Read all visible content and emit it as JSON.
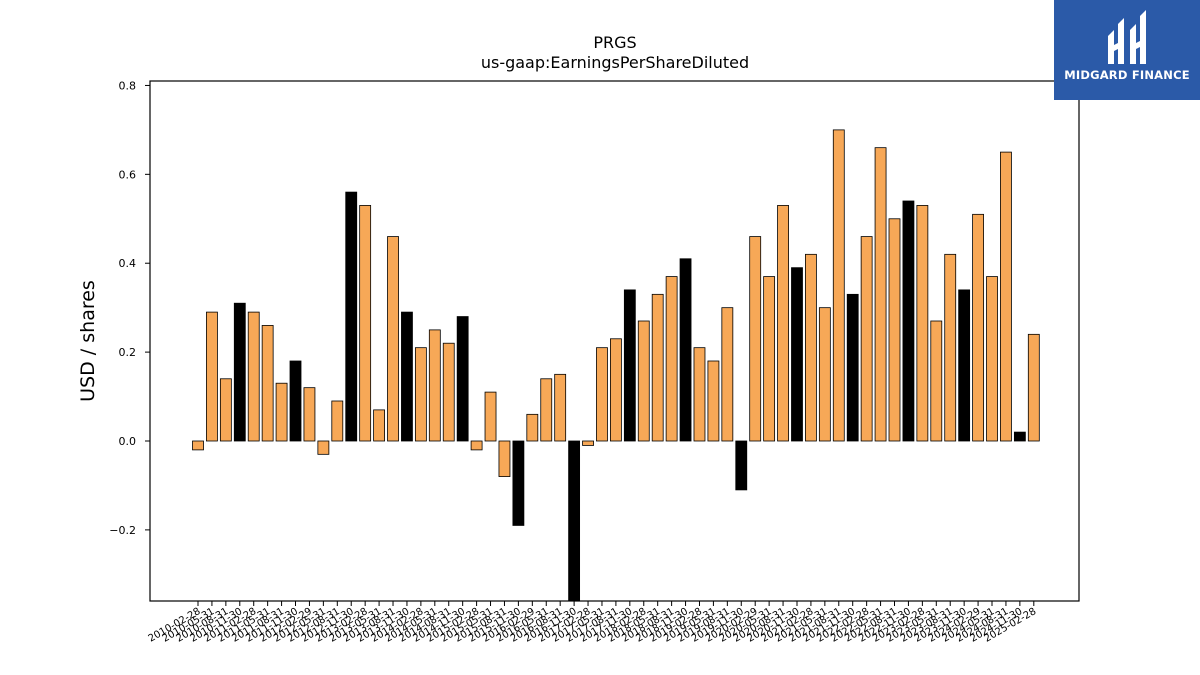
{
  "chart_data": {
    "type": "bar",
    "title": "PRGS",
    "subtitle": "us-gaap:EarningsPerShareDiluted",
    "xlabel": "",
    "ylabel": "USD / shares",
    "ylim": [
      -0.36,
      0.81
    ],
    "yticks": [
      -0.2,
      0.0,
      0.2,
      0.4,
      0.6,
      0.8
    ],
    "ytick_labels": [
      "−0.2",
      "0.0",
      "0.2",
      "0.4",
      "0.6",
      "0.8"
    ],
    "grid": false,
    "colors": {
      "quarter": "#f7a857",
      "annual": "#000000"
    },
    "xtick_labels": [
      "2010-02-28",
      "2010-05-31",
      "2010-08-31",
      "2010-11-30",
      "2011-02-28",
      "2011-05-31",
      "2011-08-31",
      "2011-11-30",
      "2012-02-29",
      "2012-05-31",
      "2012-08-31",
      "2012-11-30",
      "2013-02-28",
      "2013-05-31",
      "2013-08-31",
      "2013-11-30",
      "2014-02-28",
      "2014-05-31",
      "2014-08-31",
      "2014-11-30",
      "2015-02-28",
      "2015-05-31",
      "2015-08-31",
      "2015-11-30",
      "2016-02-29",
      "2016-05-31",
      "2016-08-31",
      "2016-11-30",
      "2017-02-28",
      "2017-05-31",
      "2017-08-31",
      "2017-11-30",
      "2018-02-28",
      "2018-05-31",
      "2018-08-31",
      "2018-11-30",
      "2019-02-28",
      "2019-05-31",
      "2019-08-31",
      "2019-11-30",
      "2020-02-29",
      "2020-05-31",
      "2020-08-31",
      "2020-11-30",
      "2021-02-28",
      "2021-05-31",
      "2021-08-31",
      "2021-11-30",
      "2022-02-28",
      "2022-05-31",
      "2022-08-31",
      "2022-11-30",
      "2023-02-28",
      "2023-05-31",
      "2023-08-31",
      "2023-11-30",
      "2024-02-29",
      "2024-05-31",
      "2024-08-31",
      "2024-11-30",
      "2025-02-28"
    ],
    "values": [
      -0.02,
      0.29,
      0.14,
      0.31,
      0.29,
      0.26,
      0.13,
      0.18,
      0.12,
      -0.03,
      0.09,
      0.56,
      0.53,
      0.07,
      0.46,
      0.29,
      0.21,
      0.25,
      0.22,
      0.28,
      -0.02,
      0.11,
      -0.08,
      -0.19,
      0.06,
      0.14,
      0.15,
      -0.36,
      -0.01,
      0.21,
      0.23,
      0.34,
      0.27,
      0.33,
      0.37,
      0.41,
      0.21,
      0.18,
      0.3,
      -0.11,
      0.46,
      0.37,
      0.53,
      0.39,
      0.42,
      0.3,
      0.7,
      0.33,
      0.46,
      0.66,
      0.5,
      0.54,
      0.53,
      0.27,
      0.42,
      0.34,
      0.51,
      0.37,
      0.65,
      0.02,
      0.24
    ],
    "annual": [
      false,
      false,
      false,
      true,
      false,
      false,
      false,
      true,
      false,
      false,
      false,
      true,
      false,
      false,
      false,
      true,
      false,
      false,
      false,
      true,
      false,
      false,
      false,
      true,
      false,
      false,
      false,
      true,
      false,
      false,
      false,
      true,
      false,
      false,
      false,
      true,
      false,
      false,
      false,
      true,
      false,
      false,
      false,
      true,
      false,
      false,
      false,
      true,
      false,
      false,
      false,
      true,
      false,
      false,
      false,
      true,
      false,
      false,
      false,
      true,
      false
    ]
  },
  "logo": {
    "text": "MIDGARD FINANCE"
  }
}
